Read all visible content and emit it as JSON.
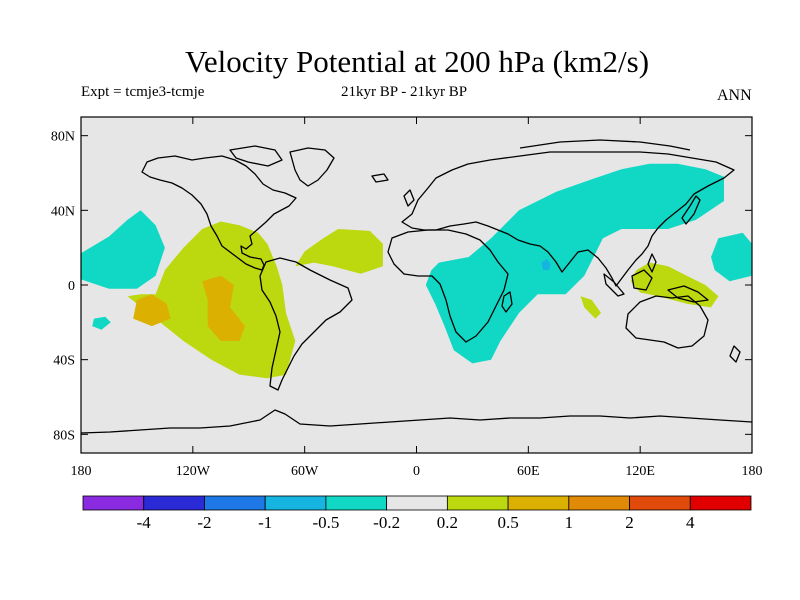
{
  "title": "Velocity Potential at 200 hPa (km2/s)",
  "left_subtitle": "Expt = tcmje3-tcmje",
  "center_subtitle": "21kyr BP - 21kyr BP",
  "right_subtitle": "ANN",
  "map": {
    "projection": "cylindrical-equidistant",
    "lon_range": [
      -180,
      180
    ],
    "lat_range": [
      -90,
      90
    ],
    "background_color": "#e6e6e6",
    "lat_ticks": [
      {
        "value": 80,
        "label": "80N"
      },
      {
        "value": 40,
        "label": "40N"
      },
      {
        "value": 0,
        "label": "0"
      },
      {
        "value": -40,
        "label": "40S"
      },
      {
        "value": -80,
        "label": "80S"
      }
    ],
    "lon_ticks": [
      {
        "value": -180,
        "label": "180"
      },
      {
        "value": -120,
        "label": "120W"
      },
      {
        "value": -60,
        "label": "60W"
      },
      {
        "value": 0,
        "label": "0"
      },
      {
        "value": 60,
        "label": "60E"
      },
      {
        "value": 120,
        "label": "120E"
      },
      {
        "value": 180,
        "label": "180"
      }
    ]
  },
  "colorbar": {
    "boundary_labels": [
      "-4",
      "-2",
      "-1",
      "-0.5",
      "-0.2",
      "0.2",
      "0.5",
      "1",
      "2",
      "4"
    ],
    "colors": [
      "#8a2be2",
      "#2a2ad6",
      "#1e78e6",
      "#16b4e0",
      "#10d8c4",
      "#e6e6e6",
      "#bcd80e",
      "#dcb000",
      "#e08a08",
      "#e04a0a",
      "#e00000"
    ]
  },
  "regions": [
    {
      "name": "central-pacific-positive",
      "color": "#bcd80e",
      "polygon": [
        [
          -140,
          -5
        ],
        [
          -135,
          8
        ],
        [
          -125,
          20
        ],
        [
          -115,
          30
        ],
        [
          -105,
          34
        ],
        [
          -95,
          32
        ],
        [
          -85,
          28
        ],
        [
          -80,
          22
        ],
        [
          -75,
          10
        ],
        [
          -72,
          0
        ],
        [
          -70,
          -15
        ],
        [
          -65,
          -30
        ],
        [
          -70,
          -48
        ],
        [
          -80,
          -50
        ],
        [
          -95,
          -48
        ],
        [
          -110,
          -40
        ],
        [
          -125,
          -30
        ],
        [
          -140,
          -18
        ],
        [
          -150,
          -10
        ],
        [
          -155,
          -6
        ],
        [
          -148,
          -5
        ]
      ]
    },
    {
      "name": "atlantic-positive",
      "color": "#bcd80e",
      "polygon": [
        [
          -65,
          10
        ],
        [
          -60,
          18
        ],
        [
          -50,
          25
        ],
        [
          -42,
          30
        ],
        [
          -25,
          29
        ],
        [
          -18,
          22
        ],
        [
          -18,
          10
        ],
        [
          -30,
          6
        ],
        [
          -45,
          10
        ],
        [
          -55,
          12
        ]
      ]
    },
    {
      "name": "maritime-continent-positive",
      "color": "#bcd80e",
      "polygon": [
        [
          118,
          8
        ],
        [
          125,
          12
        ],
        [
          135,
          10
        ],
        [
          145,
          5
        ],
        [
          155,
          0
        ],
        [
          162,
          -6
        ],
        [
          158,
          -12
        ],
        [
          145,
          -10
        ],
        [
          130,
          -6
        ],
        [
          120,
          -4
        ],
        [
          115,
          2
        ]
      ]
    },
    {
      "name": "indian-ocean-positive",
      "color": "#bcd80e",
      "polygon": [
        [
          88,
          -6
        ],
        [
          94,
          -8
        ],
        [
          99,
          -15
        ],
        [
          96,
          -18
        ],
        [
          90,
          -12
        ]
      ]
    },
    {
      "name": "pacific-orange-core-1",
      "color": "#dcb000",
      "polygon": [
        [
          -150,
          -8
        ],
        [
          -142,
          -5
        ],
        [
          -134,
          -10
        ],
        [
          -132,
          -18
        ],
        [
          -142,
          -22
        ],
        [
          -152,
          -18
        ]
      ]
    },
    {
      "name": "pacific-orange-core-2",
      "color": "#dcb000",
      "polygon": [
        [
          -115,
          2
        ],
        [
          -105,
          5
        ],
        [
          -98,
          0
        ],
        [
          -100,
          -12
        ],
        [
          -92,
          -22
        ],
        [
          -95,
          -30
        ],
        [
          -105,
          -30
        ],
        [
          -112,
          -22
        ],
        [
          -112,
          -8
        ]
      ]
    },
    {
      "name": "northeast-pacific-negative",
      "color": "#10d8c4",
      "polygon": [
        [
          -180,
          17
        ],
        [
          -180,
          3
        ],
        [
          -165,
          -2
        ],
        [
          -150,
          -2
        ],
        [
          -140,
          5
        ],
        [
          -135,
          20
        ],
        [
          -140,
          32
        ],
        [
          -148,
          40
        ],
        [
          -155,
          35
        ],
        [
          -165,
          26
        ]
      ]
    },
    {
      "name": "eurasia-indian-ocean-negative",
      "color": "#10d8c4",
      "polygon": [
        [
          12,
          12
        ],
        [
          28,
          15
        ],
        [
          40,
          25
        ],
        [
          55,
          40
        ],
        [
          75,
          50
        ],
        [
          95,
          57
        ],
        [
          110,
          62
        ],
        [
          125,
          65
        ],
        [
          140,
          65
        ],
        [
          155,
          62
        ],
        [
          165,
          58
        ],
        [
          165,
          45
        ],
        [
          150,
          35
        ],
        [
          135,
          30
        ],
        [
          110,
          30
        ],
        [
          100,
          25
        ],
        [
          95,
          15
        ],
        [
          90,
          5
        ],
        [
          80,
          -5
        ],
        [
          65,
          -5
        ],
        [
          55,
          -15
        ],
        [
          45,
          -30
        ],
        [
          40,
          -40
        ],
        [
          30,
          -42
        ],
        [
          20,
          -35
        ],
        [
          15,
          -22
        ],
        [
          10,
          -10
        ],
        [
          5,
          0
        ],
        [
          8,
          8
        ]
      ]
    },
    {
      "name": "west-pacific-negative",
      "color": "#10d8c4",
      "polygon": [
        [
          162,
          25
        ],
        [
          175,
          28
        ],
        [
          180,
          22
        ],
        [
          180,
          5
        ],
        [
          168,
          2
        ],
        [
          160,
          8
        ],
        [
          158,
          15
        ]
      ]
    },
    {
      "name": "south-pacific-negative-patch",
      "color": "#10d8c4",
      "polygon": [
        [
          -173,
          -18
        ],
        [
          -167,
          -17
        ],
        [
          -164,
          -20
        ],
        [
          -169,
          -24
        ],
        [
          -174,
          -22
        ]
      ]
    },
    {
      "name": "arabian-sea-blue-core",
      "color": "#16b4e0",
      "polygon": [
        [
          67,
          12
        ],
        [
          70,
          14
        ],
        [
          72,
          11
        ],
        [
          71,
          8
        ],
        [
          68,
          8
        ]
      ]
    }
  ]
}
